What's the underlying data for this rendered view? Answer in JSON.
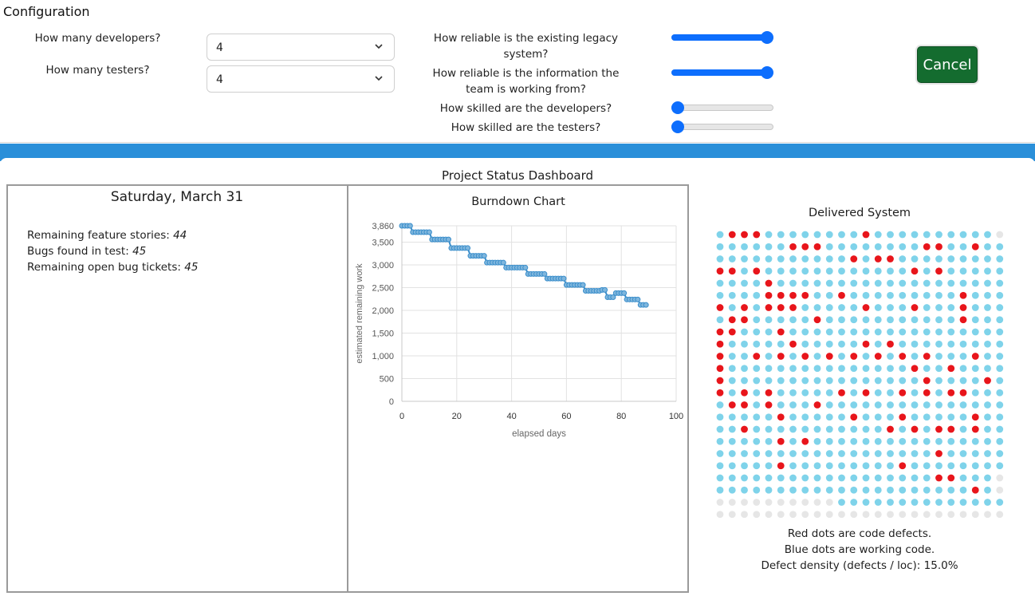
{
  "config": {
    "title": "Configuration",
    "developers": {
      "label": "How many developers?",
      "value": "4"
    },
    "testers": {
      "label": "How many testers?",
      "value": "4"
    },
    "sliders": [
      {
        "label": "How reliable is the existing legacy system?",
        "fraction": 1.0
      },
      {
        "label": "How reliable is the information the team is working from?",
        "fraction": 1.0
      },
      {
        "label": "How skilled are the developers?",
        "fraction": 0.0
      },
      {
        "label": "How skilled are the testers?",
        "fraction": 0.0
      }
    ],
    "cancel_label": "Cancel",
    "accent_color": "#0d6efd",
    "cancel_color": "#146c2f"
  },
  "dashboard": {
    "title": "Project Status Dashboard",
    "date": "Saturday, March 31",
    "stats": {
      "remaining_stories_label": "Remaining feature stories:",
      "remaining_stories_value": "44",
      "bugs_found_label": "Bugs found in test:",
      "bugs_found_value": "45",
      "open_bugs_label": "Remaining open bug tickets:",
      "open_bugs_value": "45"
    },
    "delivered": {
      "title": "Delivered System",
      "legend_red": "Red dots are code defects.",
      "legend_blue": "Blue dots are working code.",
      "density": "Defect density (defects / loc): 15.0%",
      "columns": 24,
      "rows": 24,
      "colors": {
        "defect": "#e8151b",
        "working": "#7fd3ea",
        "empty": "#e6e6e6"
      },
      "cells": [
        "drrrddddddddrdddddddddde",
        "ddddddrrrddddddddrrddrdde",
        "dddddddddddrdrrddddddddde",
        "rrdrddddddddddddrdrddddde",
        "ddddrdddddddddddddddddddde",
        "ddddrrrrddrdddddddddrddddde",
        "rdrdrrrdddddrdddrdddrddde",
        "drrdddddrdddddddddddrddde",
        "rrdddrdddddddddddddddddde",
        "rdddddrdddddrdrddddddddde",
        "rddrdrdrdrdrdrdrdrdddrdde",
        "rdddddddddddddddrddrdddde",
        "rddddddddddddddddrddddrdde",
        "rdrdrdddddrdrddrdrdrrdddde",
        "drrdrdddrddddddddddddddde",
        "dddddrdddddrdddrdddddrdde",
        "ddrdddddddddddrdrdrrdrddde",
        "dddddrdrdddddddddddddddde",
        "ddddddddddddddddddrdddddde",
        "dddddrdddddddddrdddddddde",
        "ddddddddddddddddddrrddde",
        "dddddddddddddddddddddrde",
        "eeeeeeeeeedddddddddddddde",
        "eeeeeeeeeeeeeeeeeeeeeeee"
      ]
    }
  },
  "chart_data": {
    "type": "line",
    "title": "Burndown Chart",
    "xlabel": "elapsed days",
    "ylabel": "estimated remaining work",
    "xlim": [
      0,
      100
    ],
    "ylim": [
      0,
      3860
    ],
    "xticks": [
      "0",
      "20",
      "40",
      "60",
      "80",
      "100"
    ],
    "yticks": [
      "0",
      "500",
      "1,000",
      "1,500",
      "2,000",
      "2,500",
      "3,000",
      "3,500",
      "3,860"
    ],
    "series": [
      {
        "name": "remaining work",
        "color": "#3a8ecb",
        "x": [
          0,
          1,
          2,
          3,
          4,
          5,
          6,
          7,
          8,
          9,
          10,
          11,
          12,
          13,
          14,
          15,
          16,
          17,
          18,
          19,
          20,
          21,
          22,
          23,
          24,
          25,
          26,
          27,
          28,
          29,
          30,
          31,
          32,
          33,
          34,
          35,
          36,
          37,
          38,
          39,
          40,
          41,
          42,
          43,
          44,
          45,
          46,
          47,
          48,
          49,
          50,
          51,
          52,
          53,
          54,
          55,
          56,
          57,
          58,
          59,
          60,
          61,
          62,
          63,
          64,
          65,
          66,
          67,
          68,
          69,
          70,
          71,
          72,
          73,
          74,
          75,
          76,
          77,
          78,
          79,
          80,
          81,
          82,
          83,
          84,
          85,
          86,
          87,
          88,
          89
        ],
        "values": [
          3860,
          3860,
          3860,
          3860,
          3720,
          3720,
          3720,
          3720,
          3720,
          3720,
          3720,
          3560,
          3560,
          3560,
          3560,
          3560,
          3560,
          3560,
          3370,
          3370,
          3370,
          3370,
          3370,
          3370,
          3370,
          3200,
          3200,
          3200,
          3200,
          3200,
          3200,
          3050,
          3050,
          3050,
          3050,
          3050,
          3050,
          3050,
          2940,
          2940,
          2940,
          2940,
          2940,
          2940,
          2940,
          2940,
          2800,
          2800,
          2800,
          2800,
          2800,
          2800,
          2800,
          2700,
          2700,
          2700,
          2700,
          2700,
          2700,
          2700,
          2560,
          2560,
          2560,
          2560,
          2560,
          2560,
          2560,
          2430,
          2430,
          2430,
          2430,
          2430,
          2430,
          2450,
          2450,
          2290,
          2290,
          2290,
          2380,
          2380,
          2380,
          2380,
          2240,
          2240,
          2240,
          2240,
          2240,
          2120,
          2120,
          2120
        ]
      }
    ]
  }
}
